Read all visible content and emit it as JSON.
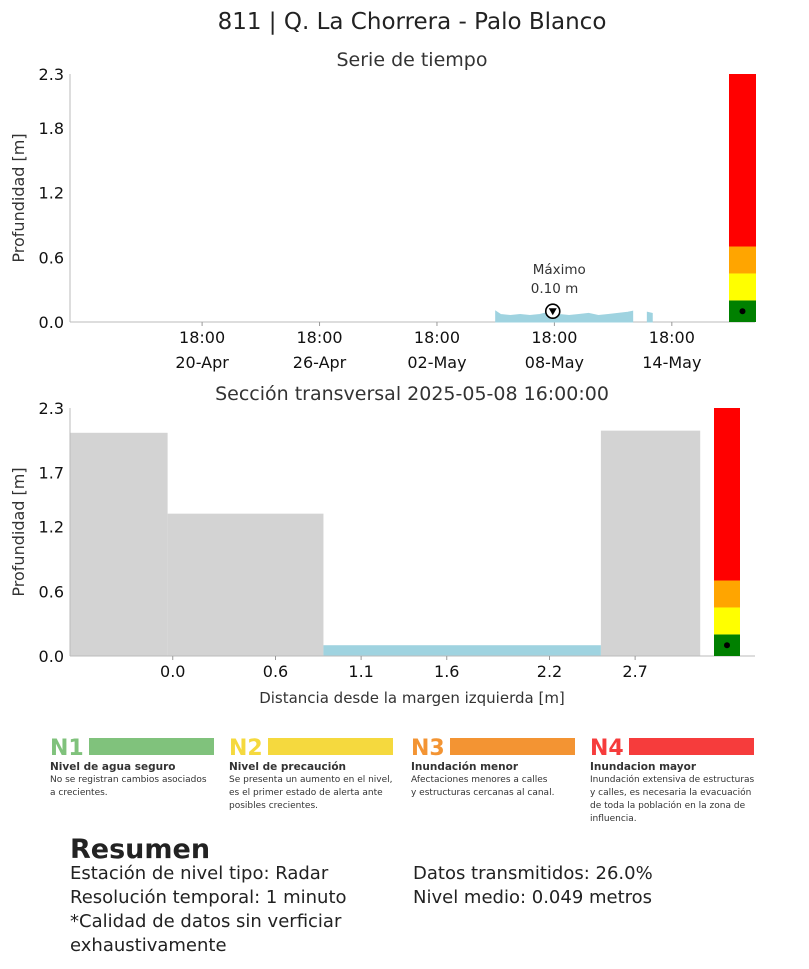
{
  "title": "811 | Q. La Chorrera - Palo Blanco",
  "chart_data": [
    {
      "type": "area",
      "title": "Serie de tiempo",
      "ylabel": "Profundidad [m]",
      "ylim": [
        0,
        2.3
      ],
      "yticks": [
        "0.0",
        "0.6",
        "1.2",
        "1.8",
        "2.3"
      ],
      "ytick_values": [
        0.0,
        0.6,
        1.2,
        1.8,
        2.3
      ],
      "xlim": [
        "2025-04-14 00:00",
        "2025-05-19 00:00"
      ],
      "xticks": [
        {
          "date": "2025-04-20 18:00",
          "line1": "18:00",
          "line2": "20-Apr"
        },
        {
          "date": "2025-04-26 18:00",
          "line1": "18:00",
          "line2": "26-Apr"
        },
        {
          "date": "2025-05-02 18:00",
          "line1": "18:00",
          "line2": "02-May"
        },
        {
          "date": "2025-05-08 18:00",
          "line1": "18:00",
          "line2": "08-May"
        },
        {
          "date": "2025-05-14 18:00",
          "line1": "18:00",
          "line2": "14-May"
        }
      ],
      "series_color": "#9fd3e0",
      "x": [
        "2025-05-05 18:00",
        "2025-05-06 00:00",
        "2025-05-06 12:00",
        "2025-05-07 00:00",
        "2025-05-07 12:00",
        "2025-05-08 00:00",
        "2025-05-08 16:00",
        "2025-05-09 00:00",
        "2025-05-09 12:00",
        "2025-05-10 00:00",
        "2025-05-10 12:00",
        "2025-05-11 00:00",
        "2025-05-11 12:00",
        "2025-05-12 00:00",
        "2025-05-12 12:00",
        "2025-05-12 18:00",
        "2025-05-13 12:00",
        "2025-05-13 18:00"
      ],
      "y": [
        0.1,
        0.07,
        0.06,
        0.07,
        0.06,
        0.07,
        0.1,
        0.07,
        0.06,
        0.07,
        0.08,
        0.06,
        0.07,
        0.08,
        0.09,
        0.1,
        0.09,
        0.08
      ],
      "gap_after_index": 15,
      "annotation": {
        "label": "Máximo",
        "value_text": "0.10 m",
        "x": "2025-05-08 16:00",
        "y": 0.1
      },
      "level_bar": {
        "segments": [
          {
            "from": 0.0,
            "to": 0.2,
            "color": "#008000"
          },
          {
            "from": 0.2,
            "to": 0.45,
            "color": "#ffff00"
          },
          {
            "from": 0.45,
            "to": 0.7,
            "color": "#ffa500"
          },
          {
            "from": 0.7,
            "to": 2.3,
            "color": "#ff0000"
          }
        ],
        "marker_value": 0.1
      }
    },
    {
      "type": "area",
      "title": "Sección transversal 2025-05-08 16:00:00",
      "xlabel": "Distancia desde la margen izquierda [m]",
      "ylabel": "Profundidad [m]",
      "ylim": [
        0,
        2.3
      ],
      "yticks": [
        "0.0",
        "0.6",
        "1.2",
        "1.7",
        "2.3"
      ],
      "ytick_values": [
        0.0,
        0.6,
        1.2,
        1.7,
        2.3
      ],
      "xlim": [
        -0.6,
        3.4
      ],
      "xticks": [
        "0.0",
        "0.6",
        "1.1",
        "1.6",
        "2.2",
        "2.7"
      ],
      "xtick_values": [
        0.0,
        0.6,
        1.1,
        1.6,
        2.2,
        2.7
      ],
      "ground_color": "#d3d3d3",
      "water_color": "#9fd3e0",
      "ground_profile": [
        {
          "x0": -0.6,
          "x1": -0.03,
          "height": 2.07
        },
        {
          "x0": -0.03,
          "x1": 0.88,
          "height": 1.32
        },
        {
          "x0": 0.88,
          "x1": 2.5,
          "height": 0.0
        },
        {
          "x0": 2.5,
          "x1": 3.08,
          "height": 2.09
        }
      ],
      "water": {
        "x0": 0.88,
        "x1": 2.5,
        "level": 0.1
      },
      "level_bar": {
        "segments": [
          {
            "from": 0.0,
            "to": 0.2,
            "color": "#008000"
          },
          {
            "from": 0.2,
            "to": 0.45,
            "color": "#ffff00"
          },
          {
            "from": 0.45,
            "to": 0.7,
            "color": "#ffa500"
          },
          {
            "from": 0.7,
            "to": 2.3,
            "color": "#ff0000"
          }
        ],
        "marker_value": 0.1
      }
    }
  ],
  "levels": [
    {
      "code": "N1",
      "color": "#80c27c",
      "title": "Nivel de agua seguro",
      "desc": [
        "No se registran cambios asociados",
        "a crecientes."
      ]
    },
    {
      "code": "N2",
      "color": "#f5d93e",
      "title": "Nivel de precaución",
      "desc": [
        "Se presenta un aumento en el nivel,",
        "es el primer estado de alerta ante",
        "posibles crecientes."
      ]
    },
    {
      "code": "N3",
      "color": "#f39433",
      "title": "Inundación menor",
      "desc": [
        "Afectaciones menores a calles",
        "y estructuras cercanas al canal."
      ]
    },
    {
      "code": "N4",
      "color": "#f63c3c",
      "title": "Inundacion mayor",
      "desc": [
        "Inundación extensiva de estructuras",
        "y calles, es necesaria la evacuación",
        "de toda la población en la zona de",
        "influencia."
      ]
    }
  ],
  "summary": {
    "title": "Resumen",
    "left": [
      "Estación de nivel tipo: Radar",
      "Resolución temporal: 1 minuto",
      "*Calidad de datos sin verficiar",
      "exhaustivamente"
    ],
    "right": [
      "Datos transmitidos: 26.0%",
      "Nivel medio: 0.049 metros"
    ]
  }
}
